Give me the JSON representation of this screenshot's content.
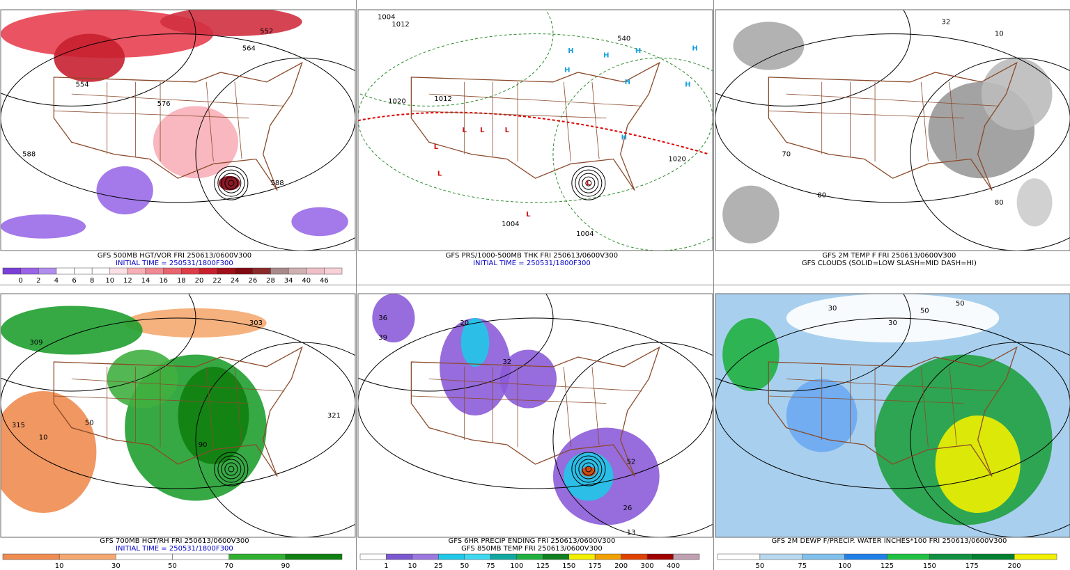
{
  "panels": [
    {
      "caption": [
        "GFS 500MB HGT/VOR FRI 250613/0600V300",
        "INITIAL TIME = 250531/1800F300"
      ],
      "labels": [
        "552",
        "564",
        "554",
        "576",
        "588",
        "588"
      ],
      "colorbar": {
        "labels": [
          "0",
          "2",
          "4",
          "6",
          "8",
          "10",
          "12",
          "14",
          "16",
          "18",
          "20",
          "22",
          "24",
          "26",
          "28",
          "34",
          "40",
          "46"
        ],
        "colors": [
          "#7b3fd8",
          "#9a63e8",
          "#b18ded",
          "#ffffff",
          "#ffffff",
          "#ffffff",
          "#fde0e4",
          "#f6b0b6",
          "#f08a92",
          "#e8646e",
          "#de3c48",
          "#c8202c",
          "#a0101a",
          "#800a10",
          "#8a2a2a",
          "#a88a8a",
          "#d0b0b0",
          "#f0c0c8",
          "#f8d0d8"
        ]
      }
    },
    {
      "caption": [
        "GFS PRS/1000-500MB THK FRI 250613/0600V300",
        "INITIAL TIME = 250531/1800F300"
      ],
      "labels": [
        "1004",
        "1012",
        "1020",
        "1012",
        "540",
        "H",
        "H",
        "H",
        "H",
        "H",
        "H",
        "H",
        "H",
        "L",
        "L",
        "L",
        "L",
        "L",
        "L",
        "L",
        "1004",
        "1004",
        "1020"
      ]
    },
    {
      "caption": [
        "GFS 2M TEMP F FRI 250613/0600V300",
        "GFS CLOUDS (SOLID=LOW SLASH=MID DASH=HI)"
      ],
      "labels": [
        "70",
        "80",
        "80",
        "32",
        "10"
      ]
    },
    {
      "caption": [
        "GFS 700MB HGT/RH FRI 250613/0600V300",
        "INITIAL TIME = 250531/1800F300"
      ],
      "labels": [
        "309",
        "315",
        "10",
        "50",
        "90",
        "321",
        "303"
      ],
      "colorbar": {
        "labels": [
          "10",
          "30",
          "50",
          "70",
          "90"
        ],
        "colors": [
          "#f08c50",
          "#f4a870",
          "#ffffff",
          "#ffffff",
          "#30b030",
          "#108010"
        ]
      }
    },
    {
      "caption": [
        "GFS 6HR PRECIP ENDING FRI 250613/0600V300",
        "GFS 850MB TEMP FRI 250613/0600V300"
      ],
      "labels": [
        "36",
        "39",
        "20",
        "26",
        "52",
        "13",
        "32"
      ],
      "colorbar": {
        "labels": [
          "1",
          "10",
          "25",
          "50",
          "75",
          "100",
          "125",
          "150",
          "175",
          "200",
          "300",
          "400"
        ],
        "colors": [
          "#ffffff",
          "#7c58d0",
          "#9a78e0",
          "#20c8e8",
          "#40d8f0",
          "#10a8a0",
          "#20b040",
          "#108020",
          "#f0f000",
          "#f0a000",
          "#e04000",
          "#a00000",
          "#c0a0b0"
        ]
      }
    },
    {
      "caption": [
        "GFS 2M DEWP F/PRECIP. WATER INCHES*100 FRI 250613/0600V300"
      ],
      "labels": [
        "50",
        "50",
        "30",
        "30"
      ],
      "colorbar": {
        "labels": [
          "50",
          "75",
          "100",
          "125",
          "150",
          "175",
          "200"
        ],
        "colors": [
          "#ffffff",
          "#b8d8f0",
          "#80c0ec",
          "#2080e8",
          "#20c040",
          "#109040",
          "#008030",
          "#f0f000"
        ]
      }
    }
  ]
}
